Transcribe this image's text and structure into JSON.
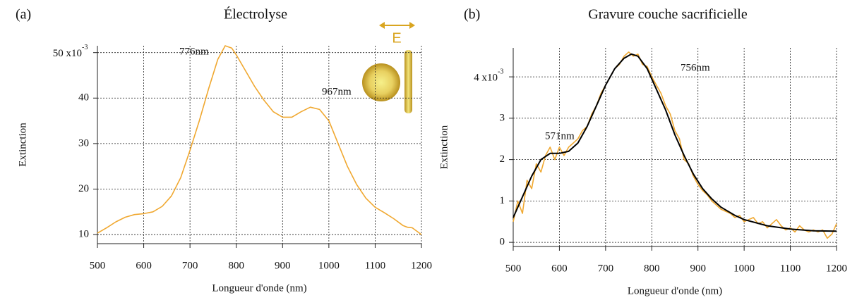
{
  "chart_data": [
    {
      "type": "line",
      "panel": "(a)",
      "title": "Électrolyse",
      "x_label": "Longueur d'onde (nm)",
      "y_label": "Extinction",
      "xlim": [
        500,
        1200
      ],
      "xticks": [
        500,
        600,
        700,
        800,
        900,
        1000,
        1100,
        1200
      ],
      "ylim": [
        8,
        51.5
      ],
      "yticks": [
        10,
        20,
        30,
        40,
        {
          "value": 50,
          "label": "50 x10",
          "exponent": "-3"
        }
      ],
      "grid": true,
      "annotations": [
        "776nm",
        "967nm"
      ],
      "polarization_label": "E",
      "series": [
        {
          "color": "#f0a830",
          "x": [
            500,
            520,
            540,
            560,
            580,
            600,
            620,
            640,
            660,
            680,
            700,
            720,
            740,
            760,
            776,
            790,
            800,
            820,
            840,
            860,
            880,
            900,
            920,
            940,
            960,
            980,
            1000,
            1020,
            1040,
            1060,
            1080,
            1100,
            1120,
            1140,
            1160,
            1170,
            1180,
            1200
          ],
          "values": [
            10.3,
            11.5,
            12.8,
            13.8,
            14.4,
            14.6,
            15.0,
            16.2,
            18.5,
            22.5,
            28.5,
            35,
            42,
            48.5,
            51.5,
            51,
            49.5,
            46,
            42.5,
            39.5,
            37,
            35.8,
            35.8,
            37,
            38,
            37.5,
            35,
            30,
            25,
            21,
            18,
            16,
            14.8,
            13.5,
            12,
            11.6,
            11.5,
            10
          ]
        }
      ]
    },
    {
      "type": "line",
      "panel": "(b)",
      "title": "Gravure couche sacrificielle",
      "x_label": "Longueur d'onde (nm)",
      "y_label": "Extinction",
      "xlim": [
        500,
        1200
      ],
      "xticks": [
        500,
        600,
        700,
        800,
        900,
        1000,
        1100,
        1200
      ],
      "ylim": [
        -0.1,
        4.7
      ],
      "yticks": [
        0,
        1,
        2,
        3,
        {
          "value": 4,
          "label": "4 x10",
          "exponent": "-3"
        }
      ],
      "grid": true,
      "annotations": [
        "571nm",
        "756nm"
      ],
      "series": [
        {
          "color": "#f0a830",
          "x": [
            500,
            510,
            520,
            530,
            540,
            550,
            560,
            570,
            580,
            590,
            600,
            610,
            620,
            630,
            640,
            650,
            660,
            670,
            680,
            690,
            700,
            710,
            720,
            730,
            740,
            750,
            760,
            770,
            780,
            790,
            800,
            810,
            820,
            830,
            840,
            850,
            860,
            870,
            880,
            890,
            900,
            910,
            920,
            930,
            940,
            950,
            960,
            970,
            980,
            990,
            1000,
            1010,
            1020,
            1030,
            1040,
            1050,
            1060,
            1070,
            1080,
            1090,
            1100,
            1110,
            1120,
            1130,
            1140,
            1150,
            1160,
            1170,
            1180,
            1190,
            1200
          ],
          "values": [
            0.5,
            1.0,
            0.7,
            1.5,
            1.3,
            1.9,
            1.7,
            2.1,
            2.3,
            2.0,
            2.3,
            2.1,
            2.3,
            2.4,
            2.5,
            2.7,
            2.8,
            3.1,
            3.3,
            3.6,
            3.8,
            4.0,
            4.2,
            4.3,
            4.5,
            4.6,
            4.5,
            4.55,
            4.3,
            4.25,
            4.0,
            3.8,
            3.6,
            3.3,
            3.1,
            2.7,
            2.5,
            2.0,
            1.9,
            1.6,
            1.4,
            1.25,
            1.15,
            1.0,
            0.9,
            0.8,
            0.75,
            0.7,
            0.6,
            0.65,
            0.5,
            0.55,
            0.6,
            0.45,
            0.5,
            0.35,
            0.45,
            0.55,
            0.4,
            0.3,
            0.35,
            0.25,
            0.4,
            0.3,
            0.25,
            0.3,
            0.25,
            0.3,
            0.1,
            0.2,
            0.45
          ]
        },
        {
          "color": "#000000",
          "x": [
            500,
            520,
            540,
            560,
            580,
            600,
            620,
            640,
            660,
            680,
            700,
            720,
            740,
            756,
            770,
            790,
            810,
            830,
            850,
            870,
            890,
            910,
            930,
            950,
            980,
            1000,
            1050,
            1100,
            1150,
            1200
          ],
          "values": [
            0.6,
            1.1,
            1.6,
            2.0,
            2.15,
            2.15,
            2.2,
            2.4,
            2.8,
            3.3,
            3.8,
            4.2,
            4.45,
            4.55,
            4.5,
            4.2,
            3.7,
            3.2,
            2.6,
            2.1,
            1.65,
            1.3,
            1.05,
            0.85,
            0.65,
            0.55,
            0.4,
            0.32,
            0.28,
            0.27
          ]
        }
      ]
    }
  ]
}
